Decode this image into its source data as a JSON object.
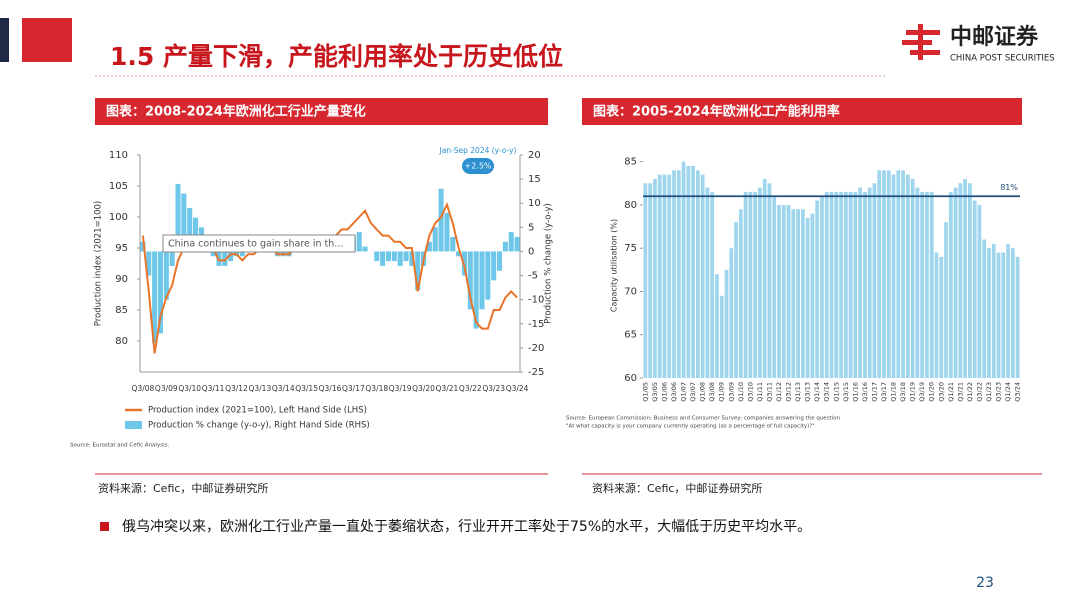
{
  "header": {
    "title": "1.5 产量下滑，产能利用率处于历史低位",
    "logo_cn": "中邮证券",
    "logo_en": "CHINA POST SECURITIES"
  },
  "chart_data": [
    {
      "type": "combo",
      "heading": "图表：2008-2024年欧洲化工行业产量变化",
      "ylabel": "Production index (2021=100)",
      "y2label": "Production % change (y-o-y)",
      "categories": [
        "Q3/08",
        null,
        null,
        null,
        "Q3/09",
        null,
        null,
        null,
        "Q3/10",
        null,
        null,
        null,
        "Q3/11",
        null,
        null,
        null,
        "Q3/12",
        null,
        null,
        null,
        "Q3/13",
        null,
        null,
        null,
        "Q3/14",
        null,
        null,
        null,
        "Q3/15",
        null,
        null,
        null,
        "Q3/16",
        null,
        null,
        null,
        "Q3/17",
        null,
        null,
        null,
        "Q3/18",
        null,
        null,
        null,
        "Q3/19",
        null,
        null,
        null,
        "Q3/20",
        null,
        null,
        null,
        "Q3/21",
        null,
        null,
        null,
        "Q3/22",
        null,
        null,
        null,
        "Q3/23",
        null,
        null,
        null,
        "Q3/24"
      ],
      "series": [
        {
          "name": "Production % change (y-o-y), Right Hand Side (RHS)",
          "mark": "bar",
          "axis": "y2",
          "color": "#6ec6e8",
          "values": [
            2,
            -5,
            -19,
            -17,
            -10,
            -3,
            14,
            12,
            9,
            7,
            5,
            2,
            -1,
            -3,
            -3,
            -2,
            -1,
            -1,
            0,
            0,
            1,
            1,
            1,
            -1,
            -1,
            -1,
            0,
            1,
            1,
            1,
            0,
            1,
            1,
            2,
            3,
            3,
            3,
            4,
            1,
            0,
            -2,
            -3,
            -2,
            -2,
            -3,
            -2,
            -3,
            -8,
            -3,
            2,
            5,
            13,
            8,
            3,
            -1,
            -5,
            -12,
            -16,
            -12,
            -10,
            -6,
            -4,
            2,
            4,
            3
          ]
        },
        {
          "name": "Production index (2021=100), Left Hand Side (LHS)",
          "mark": "line",
          "color": "#e8742a",
          "values": [
            97,
            88,
            78,
            84,
            87,
            89,
            93,
            95,
            96,
            96,
            97,
            96,
            95,
            93,
            93,
            94,
            94,
            93,
            94,
            94,
            95,
            95,
            95,
            94,
            94,
            94,
            95,
            95,
            95,
            95,
            95,
            96,
            96,
            97,
            98,
            98,
            99,
            100,
            101,
            99,
            98,
            97,
            97,
            96,
            96,
            95,
            95,
            88,
            93,
            97,
            99,
            100,
            102,
            99,
            95,
            92,
            87,
            83,
            82,
            82,
            85,
            85,
            87,
            88,
            87
          ]
        }
      ],
      "ylim": [
        75,
        110
      ],
      "yticks": [
        80,
        85,
        90,
        95,
        100,
        105,
        110
      ],
      "y2lim": [
        -25,
        20
      ],
      "y2ticks": [
        -25,
        -20,
        -15,
        -10,
        -5,
        0,
        5,
        10,
        15,
        20
      ],
      "annotations": [
        "Jan-Sep 2024 (y-o-y)",
        "+2.5%",
        "China continues to gain share in th..."
      ],
      "source": "Source: Eurostat and Cefic Analysis.",
      "credit": "资料来源：Cefic，中邮证券研究所"
    },
    {
      "type": "bar",
      "heading": "图表：2005-2024年欧洲化工产能利用率",
      "ylabel": "Capacity utilisation (%)",
      "color": "#9fd6ee",
      "categories": [
        "Q1/05",
        null,
        "Q3/05",
        null,
        "Q1/06",
        null,
        "Q3/06",
        null,
        "Q1/07",
        null,
        "Q3/07",
        null,
        "Q1/08",
        null,
        "Q3/08",
        null,
        "Q1/09",
        null,
        "Q3/09",
        null,
        "Q1/10",
        null,
        "Q3/10",
        null,
        "Q1/11",
        null,
        "Q3/11",
        null,
        "Q1/12",
        null,
        "Q3/12",
        null,
        "Q1/13",
        null,
        "Q3/13",
        null,
        "Q1/14",
        null,
        "Q3/14",
        null,
        "Q1/15",
        null,
        "Q3/15",
        null,
        "Q1/16",
        null,
        "Q3/16",
        null,
        "Q1/17",
        null,
        "Q3/17",
        null,
        "Q1/18",
        null,
        "Q3/18",
        null,
        "Q1/19",
        null,
        "Q3/19",
        null,
        "Q1/20",
        null,
        "Q3/20",
        null,
        "Q1/21",
        null,
        "Q3/21",
        null,
        "Q1/22",
        null,
        "Q3/22",
        null,
        "Q1/23",
        null,
        "Q3/23",
        null,
        "Q1/24",
        null,
        "Q3/24"
      ],
      "values": [
        82.5,
        82.5,
        83,
        83.5,
        83.5,
        83.5,
        84,
        84,
        85,
        84.5,
        84.5,
        84,
        83.5,
        82,
        81.5,
        72,
        69.5,
        72.5,
        75,
        78,
        79.5,
        81.5,
        81.5,
        81.5,
        82,
        83,
        82.5,
        81,
        80,
        80,
        80,
        79.5,
        79.5,
        79.5,
        78.5,
        79,
        80.5,
        81,
        81.5,
        81.5,
        81.5,
        81.5,
        81.5,
        81.5,
        81.5,
        82,
        81.5,
        82,
        82.5,
        84,
        84,
        84,
        83.5,
        84,
        84,
        83.5,
        83,
        82,
        81.5,
        81.5,
        81.5,
        74.5,
        74,
        78,
        81.5,
        82,
        82.5,
        83,
        82.5,
        80.5,
        80,
        76,
        75,
        75.5,
        74.5,
        74.5,
        75.5,
        75,
        74
      ],
      "ylim": [
        60,
        86
      ],
      "yticks": [
        60,
        65,
        70,
        75,
        80,
        85
      ],
      "reference": {
        "value": 81,
        "label": "81%",
        "color": "#1f4e79"
      },
      "source": [
        "Source: European Commission: Business and Consumer Survey: companies answering the question",
        "\"At what capacity is your company currently operating (as a percentage of full capacity)?\""
      ],
      "credit": "资料来源：Cefic，中邮证券研究所"
    }
  ],
  "body": {
    "bullet": "俄乌冲突以来，欧洲化工行业产量一直处于萎缩状态，行业开开工率处于75%的水平，大幅低于历史平均水平。"
  },
  "footer": {
    "page": "23"
  }
}
